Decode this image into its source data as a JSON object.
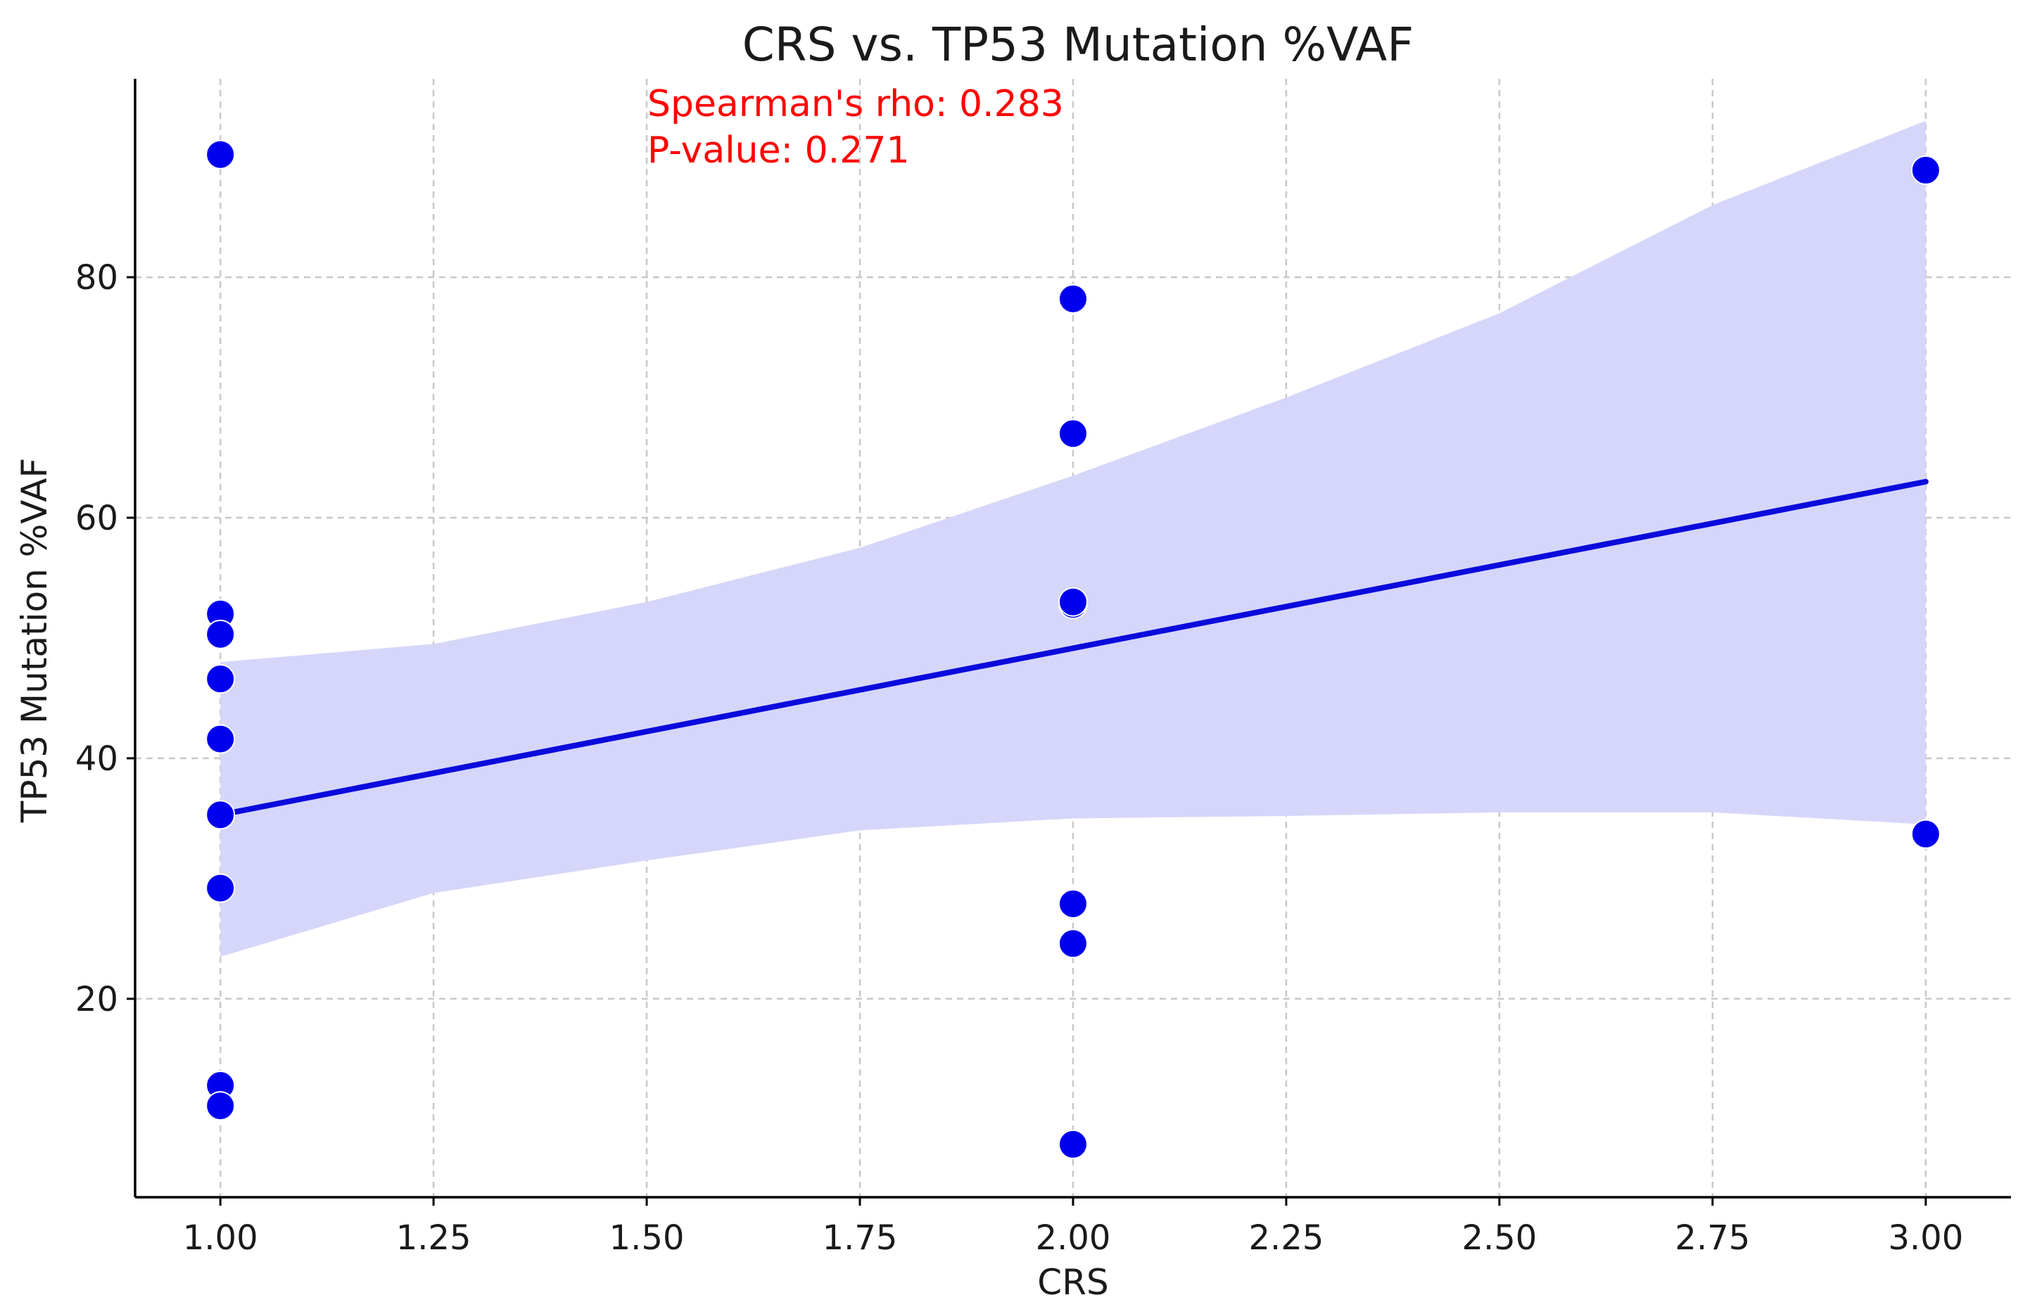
{
  "chart_data": {
    "type": "scatter",
    "title": "CRS vs. TP53 Mutation %VAF",
    "xlabel": "CRS",
    "ylabel": "TP53 Mutation %VAF",
    "xlim": [
      0.9,
      3.1
    ],
    "ylim": [
      3.5,
      96.5
    ],
    "xticks": [
      1.0,
      1.25,
      1.5,
      1.75,
      2.0,
      2.25,
      2.5,
      2.75,
      3.0
    ],
    "xtick_labels": [
      "1.00",
      "1.25",
      "1.50",
      "1.75",
      "2.00",
      "2.25",
      "2.50",
      "2.75",
      "3.00"
    ],
    "yticks": [
      20,
      40,
      60,
      80
    ],
    "ytick_labels": [
      "20",
      "40",
      "60",
      "80"
    ],
    "grid": true,
    "series": [
      {
        "name": "Samples",
        "kind": "scatter",
        "color": "#0000ee",
        "x": [
          1,
          1,
          1,
          1,
          1,
          1,
          1,
          1,
          1,
          2,
          2,
          2,
          2,
          2,
          2,
          2,
          3,
          3
        ],
        "y": [
          52.0,
          50.3,
          46.6,
          41.6,
          35.3,
          29.2,
          12.8,
          11.1,
          90.2,
          78.2,
          67.0,
          52.8,
          27.9,
          24.6,
          7.9,
          53.0,
          88.9,
          33.7
        ]
      },
      {
        "name": "Regression line",
        "kind": "line",
        "color": "#0a0adc",
        "x": [
          1.0,
          3.0
        ],
        "y": [
          35.3,
          63.0
        ]
      },
      {
        "name": "Confidence interval",
        "kind": "band",
        "color": "#d6d6fb",
        "x": [
          1.0,
          1.25,
          1.5,
          1.75,
          2.0,
          2.25,
          2.5,
          2.75,
          3.0
        ],
        "upper": [
          48.0,
          49.5,
          53.0,
          57.5,
          63.5,
          70.0,
          77.0,
          86.0,
          93.0
        ],
        "lower": [
          23.5,
          28.8,
          31.5,
          34.0,
          35.0,
          35.2,
          35.5,
          35.5,
          34.5
        ]
      }
    ],
    "annotations": [
      {
        "text": "Spearman's rho: 0.283",
        "color": "#ff0000"
      },
      {
        "text": "P-value: 0.271",
        "color": "#ff0000"
      }
    ]
  }
}
